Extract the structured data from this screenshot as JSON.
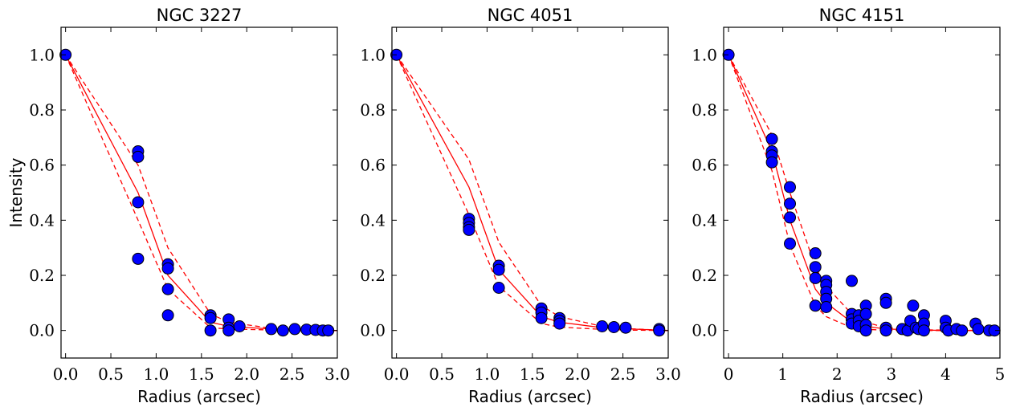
{
  "chart_data": [
    {
      "type": "scatter",
      "title": "NGC 3227",
      "xlabel": "Radius (arcsec)",
      "ylabel": "Intensity",
      "xlim": [
        -0.05,
        3.0
      ],
      "ylim": [
        -0.1,
        1.1
      ],
      "xticks": [
        "0.0",
        "0.5",
        "1.0",
        "1.5",
        "2.0",
        "2.5",
        "3.0"
      ],
      "xtick_values": [
        0.0,
        0.5,
        1.0,
        1.5,
        2.0,
        2.5,
        3.0
      ],
      "yticks": [
        "0.0",
        "0.2",
        "0.4",
        "0.6",
        "0.8",
        "1.0"
      ],
      "ytick_values": [
        0.0,
        0.2,
        0.4,
        0.6,
        0.8,
        1.0
      ],
      "marker_color": "#0000ff",
      "line_color": "#ff0000",
      "points": [
        [
          0.0,
          1.0
        ],
        [
          0.8,
          0.65
        ],
        [
          0.8,
          0.63
        ],
        [
          0.8,
          0.465
        ],
        [
          0.8,
          0.26
        ],
        [
          1.13,
          0.24
        ],
        [
          1.13,
          0.225
        ],
        [
          1.13,
          0.15
        ],
        [
          1.13,
          0.055
        ],
        [
          1.6,
          0.055
        ],
        [
          1.6,
          0.045
        ],
        [
          1.6,
          0.0
        ],
        [
          1.8,
          0.04
        ],
        [
          1.8,
          0.01
        ],
        [
          1.8,
          0.0
        ],
        [
          1.92,
          0.015
        ],
        [
          2.27,
          0.005
        ],
        [
          2.4,
          0.0
        ],
        [
          2.53,
          0.005
        ],
        [
          2.66,
          0.003
        ],
        [
          2.76,
          0.002
        ],
        [
          2.84,
          0.0
        ],
        [
          2.9,
          0.0
        ]
      ],
      "fit": [
        [
          0.0,
          1.0
        ],
        [
          0.8,
          0.5
        ],
        [
          1.13,
          0.2
        ],
        [
          1.6,
          0.03
        ],
        [
          1.8,
          0.015
        ],
        [
          2.27,
          0.005
        ],
        [
          2.6,
          0.002
        ],
        [
          3.0,
          0.0
        ]
      ],
      "upper": [
        [
          0.0,
          1.0
        ],
        [
          0.8,
          0.6
        ],
        [
          1.13,
          0.3
        ],
        [
          1.6,
          0.06
        ],
        [
          1.8,
          0.03
        ],
        [
          2.27,
          0.008
        ],
        [
          2.6,
          0.003
        ],
        [
          3.0,
          0.0
        ]
      ],
      "lower": [
        [
          0.0,
          1.0
        ],
        [
          0.8,
          0.4
        ],
        [
          1.13,
          0.15
        ],
        [
          1.6,
          0.01
        ],
        [
          1.8,
          0.005
        ],
        [
          2.27,
          0.002
        ],
        [
          2.6,
          0.0
        ],
        [
          3.0,
          0.0
        ]
      ]
    },
    {
      "type": "scatter",
      "title": "NGC 4051",
      "xlabel": "Radius (arcsec)",
      "ylabel": "",
      "xlim": [
        -0.05,
        3.0
      ],
      "ylim": [
        -0.1,
        1.1
      ],
      "xticks": [
        "0.0",
        "0.5",
        "1.0",
        "1.5",
        "2.0",
        "2.5",
        "3.0"
      ],
      "xtick_values": [
        0.0,
        0.5,
        1.0,
        1.5,
        2.0,
        2.5,
        3.0
      ],
      "yticks": [
        "0.0",
        "0.2",
        "0.4",
        "0.6",
        "0.8",
        "1.0"
      ],
      "ytick_values": [
        0.0,
        0.2,
        0.4,
        0.6,
        0.8,
        1.0
      ],
      "marker_color": "#0000ff",
      "line_color": "#ff0000",
      "points": [
        [
          0.0,
          1.0
        ],
        [
          0.8,
          0.405
        ],
        [
          0.8,
          0.39
        ],
        [
          0.8,
          0.375
        ],
        [
          0.8,
          0.365
        ],
        [
          1.13,
          0.235
        ],
        [
          1.13,
          0.22
        ],
        [
          1.13,
          0.155
        ],
        [
          1.6,
          0.08
        ],
        [
          1.6,
          0.065
        ],
        [
          1.6,
          0.045
        ],
        [
          1.8,
          0.045
        ],
        [
          1.8,
          0.035
        ],
        [
          1.8,
          0.025
        ],
        [
          2.27,
          0.015
        ],
        [
          2.4,
          0.012
        ],
        [
          2.53,
          0.01
        ],
        [
          2.9,
          0.005
        ],
        [
          2.9,
          0.0
        ]
      ],
      "fit": [
        [
          0.0,
          1.0
        ],
        [
          0.8,
          0.52
        ],
        [
          1.13,
          0.22
        ],
        [
          1.6,
          0.05
        ],
        [
          1.8,
          0.03
        ],
        [
          2.27,
          0.01
        ],
        [
          2.6,
          0.005
        ],
        [
          3.0,
          0.0
        ]
      ],
      "upper": [
        [
          0.0,
          1.0
        ],
        [
          0.8,
          0.62
        ],
        [
          1.13,
          0.32
        ],
        [
          1.6,
          0.09
        ],
        [
          1.8,
          0.05
        ],
        [
          2.27,
          0.015
        ],
        [
          2.6,
          0.006
        ],
        [
          3.0,
          0.0
        ]
      ],
      "lower": [
        [
          0.0,
          1.0
        ],
        [
          0.8,
          0.42
        ],
        [
          1.13,
          0.16
        ],
        [
          1.6,
          0.025
        ],
        [
          1.8,
          0.012
        ],
        [
          2.27,
          0.004
        ],
        [
          2.6,
          0.001
        ],
        [
          3.0,
          0.0
        ]
      ]
    },
    {
      "type": "scatter",
      "title": "NGC 4151",
      "xlabel": "Radius (arcsec)",
      "ylabel": "",
      "xlim": [
        -0.09,
        5.0
      ],
      "ylim": [
        -0.1,
        1.1
      ],
      "xticks": [
        "0",
        "1",
        "2",
        "3",
        "4",
        "5"
      ],
      "xtick_values": [
        0,
        1,
        2,
        3,
        4,
        5
      ],
      "yticks": [
        "0.0",
        "0.2",
        "0.4",
        "0.6",
        "0.8",
        "1.0"
      ],
      "ytick_values": [
        0.0,
        0.2,
        0.4,
        0.6,
        0.8,
        1.0
      ],
      "marker_color": "#0000ff",
      "line_color": "#ff0000",
      "points": [
        [
          0.0,
          1.0
        ],
        [
          0.8,
          0.695
        ],
        [
          0.8,
          0.65
        ],
        [
          0.8,
          0.635
        ],
        [
          0.8,
          0.61
        ],
        [
          1.13,
          0.52
        ],
        [
          1.13,
          0.46
        ],
        [
          1.13,
          0.41
        ],
        [
          1.13,
          0.315
        ],
        [
          1.6,
          0.28
        ],
        [
          1.6,
          0.23
        ],
        [
          1.6,
          0.19
        ],
        [
          1.6,
          0.09
        ],
        [
          1.8,
          0.18
        ],
        [
          1.8,
          0.165
        ],
        [
          1.8,
          0.14
        ],
        [
          1.8,
          0.115
        ],
        [
          1.8,
          0.085
        ],
        [
          2.27,
          0.18
        ],
        [
          2.27,
          0.06
        ],
        [
          2.27,
          0.04
        ],
        [
          2.27,
          0.025
        ],
        [
          2.4,
          0.055
        ],
        [
          2.4,
          0.035
        ],
        [
          2.4,
          0.015
        ],
        [
          2.53,
          0.09
        ],
        [
          2.53,
          0.06
        ],
        [
          2.53,
          0.02
        ],
        [
          2.53,
          0.0
        ],
        [
          2.9,
          0.115
        ],
        [
          2.9,
          0.1
        ],
        [
          2.9,
          0.01
        ],
        [
          2.9,
          0.0
        ],
        [
          3.2,
          0.005
        ],
        [
          3.3,
          0.0
        ],
        [
          3.35,
          0.035
        ],
        [
          3.4,
          0.09
        ],
        [
          3.45,
          0.01
        ],
        [
          3.5,
          0.005
        ],
        [
          3.6,
          0.055
        ],
        [
          3.6,
          0.025
        ],
        [
          3.6,
          0.0
        ],
        [
          4.0,
          0.035
        ],
        [
          4.0,
          0.01
        ],
        [
          4.05,
          0.0
        ],
        [
          4.2,
          0.005
        ],
        [
          4.3,
          0.0
        ],
        [
          4.55,
          0.025
        ],
        [
          4.6,
          0.005
        ],
        [
          4.8,
          0.0
        ],
        [
          4.9,
          0.0
        ]
      ],
      "fit": [
        [
          0.0,
          1.0
        ],
        [
          0.8,
          0.65
        ],
        [
          1.13,
          0.4
        ],
        [
          1.6,
          0.15
        ],
        [
          1.8,
          0.1
        ],
        [
          2.27,
          0.03
        ],
        [
          2.53,
          0.015
        ],
        [
          2.9,
          0.005
        ],
        [
          3.5,
          0.002
        ],
        [
          4.0,
          0.0
        ],
        [
          5.0,
          0.0
        ]
      ],
      "upper": [
        [
          0.0,
          1.0
        ],
        [
          0.8,
          0.71
        ],
        [
          1.13,
          0.5
        ],
        [
          1.6,
          0.23
        ],
        [
          1.8,
          0.16
        ],
        [
          2.27,
          0.06
        ],
        [
          2.53,
          0.03
        ],
        [
          2.9,
          0.01
        ],
        [
          3.5,
          0.003
        ],
        [
          4.0,
          0.001
        ],
        [
          5.0,
          0.0
        ]
      ],
      "lower": [
        [
          0.0,
          1.0
        ],
        [
          0.8,
          0.58
        ],
        [
          1.13,
          0.31
        ],
        [
          1.6,
          0.09
        ],
        [
          1.8,
          0.05
        ],
        [
          2.27,
          0.01
        ],
        [
          2.53,
          0.004
        ],
        [
          2.9,
          0.001
        ],
        [
          3.5,
          0.0
        ],
        [
          4.0,
          0.0
        ],
        [
          5.0,
          0.0
        ]
      ]
    }
  ]
}
